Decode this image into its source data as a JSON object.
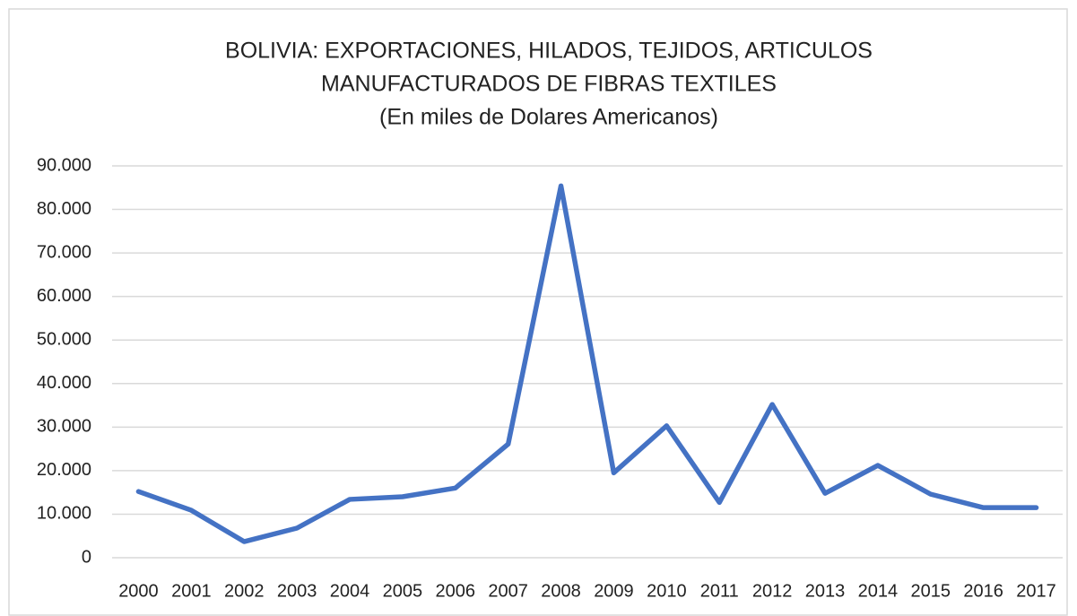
{
  "chart_data": {
    "type": "line",
    "title": [
      "BOLIVIA: EXPORTACIONES, HILADOS, TEJIDOS, ARTICULOS",
      "MANUFACTURADOS  DE FIBRAS TEXTILES",
      "(En miles de Dolares Americanos)"
    ],
    "categories": [
      "2000",
      "2001",
      "2002",
      "2003",
      "2004",
      "2005",
      "2006",
      "2007",
      "2008",
      "2009",
      "2010",
      "2011",
      "2012",
      "2013",
      "2014",
      "2015",
      "2016",
      "2017"
    ],
    "series": [
      {
        "color": "#4472c4",
        "values": [
          15200,
          10900,
          3700,
          6800,
          13400,
          14000,
          16000,
          26100,
          85400,
          19500,
          30300,
          12700,
          35200,
          14800,
          21200,
          14600,
          11500,
          11500
        ]
      }
    ],
    "ylim": [
      0,
      90000
    ],
    "yticks": [
      0,
      {
        "value": 10000,
        "label": "10.000"
      },
      {
        "value": 20000,
        "label": "20.000"
      },
      {
        "value": 30000,
        "label": "30.000"
      },
      {
        "value": 40000,
        "label": "40.000"
      },
      {
        "value": 50000,
        "label": "50.000"
      },
      {
        "value": 60000,
        "label": "60.000"
      },
      {
        "value": 70000,
        "label": "70.000"
      },
      {
        "value": 80000,
        "label": "80.000"
      },
      {
        "value": 90000,
        "label": "90.000"
      }
    ],
    "grid": true
  }
}
